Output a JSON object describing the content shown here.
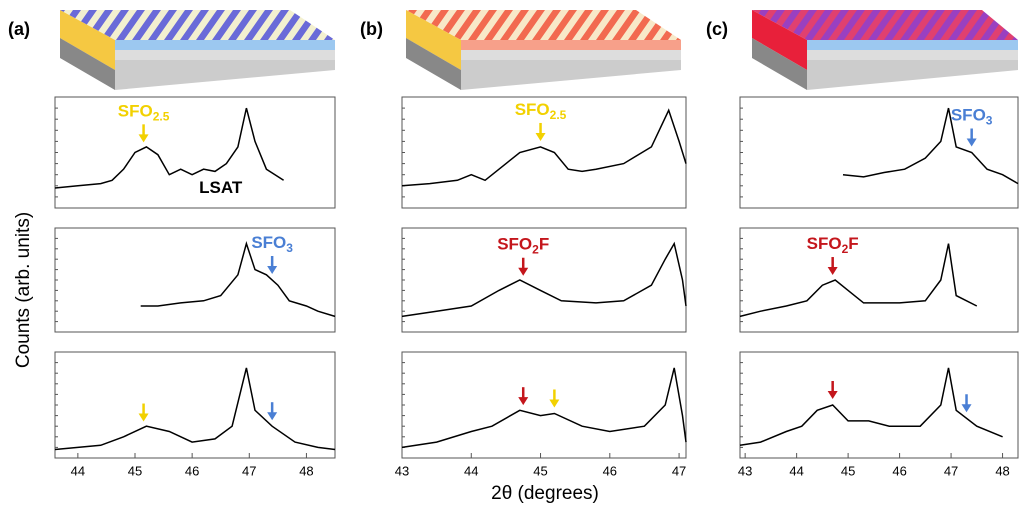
{
  "figure": {
    "ylabel": "Counts (arb. units)",
    "xlabel": "2θ (degrees)"
  },
  "chart_data": [
    {
      "type": "line",
      "panel": "(a)",
      "xlim": [
        43.6,
        48.5
      ],
      "ylim": [
        0,
        1
      ],
      "color": "#000000",
      "x": [
        43.6,
        44.0,
        44.4,
        44.6,
        44.8,
        45.0,
        45.2,
        45.4,
        45.6,
        45.8,
        46.0,
        46.2,
        46.4,
        46.6,
        46.8,
        46.95,
        47.1,
        47.3,
        47.6
      ],
      "values": [
        0.18,
        0.2,
        0.22,
        0.25,
        0.35,
        0.5,
        0.55,
        0.48,
        0.3,
        0.35,
        0.3,
        0.35,
        0.33,
        0.4,
        0.55,
        0.9,
        0.6,
        0.35,
        0.25
      ],
      "annotations": [
        {
          "x": 45.15,
          "label": "SFO",
          "sub": "2.5",
          "color": "#f2d100"
        },
        {
          "x": 46.5,
          "y": 0.17,
          "label": "LSAT",
          "color": "#000000"
        }
      ]
    },
    {
      "type": "line",
      "xlim": [
        43.6,
        48.5
      ],
      "ylim": [
        0,
        1
      ],
      "color": "#000000",
      "x": [
        45.1,
        45.4,
        45.8,
        46.2,
        46.5,
        46.8,
        46.95,
        47.1,
        47.3,
        47.5,
        47.7,
        48.0,
        48.2,
        48.5
      ],
      "values": [
        0.25,
        0.25,
        0.28,
        0.3,
        0.35,
        0.55,
        0.85,
        0.6,
        0.55,
        0.45,
        0.3,
        0.25,
        0.2,
        0.15
      ],
      "annotations": [
        {
          "x": 47.4,
          "label": "SFO",
          "sub": "3",
          "color": "#4a7fd4"
        }
      ]
    },
    {
      "type": "line",
      "xlim": [
        43.6,
        48.5
      ],
      "ylim": [
        0,
        1
      ],
      "color": "#000000",
      "xticks": [
        44,
        45,
        46,
        47,
        48
      ],
      "x": [
        43.6,
        44.0,
        44.4,
        44.8,
        45.2,
        45.6,
        46.0,
        46.4,
        46.7,
        46.95,
        47.1,
        47.4,
        47.8,
        48.2,
        48.5
      ],
      "values": [
        0.08,
        0.1,
        0.12,
        0.2,
        0.3,
        0.25,
        0.15,
        0.18,
        0.3,
        0.85,
        0.45,
        0.3,
        0.15,
        0.1,
        0.08
      ],
      "annotations": [
        {
          "x": 45.15,
          "color": "#f2d100"
        },
        {
          "x": 47.4,
          "color": "#4a7fd4"
        }
      ]
    },
    {
      "type": "line",
      "panel": "(b)",
      "xlim": [
        43,
        47.1
      ],
      "ylim": [
        0,
        1
      ],
      "color": "#000000",
      "x": [
        43,
        43.4,
        43.8,
        44.0,
        44.2,
        44.4,
        44.7,
        45.0,
        45.2,
        45.4,
        45.6,
        45.8,
        46.2,
        46.6,
        46.85,
        47.0,
        47.1
      ],
      "values": [
        0.2,
        0.22,
        0.25,
        0.3,
        0.25,
        0.35,
        0.5,
        0.55,
        0.5,
        0.35,
        0.33,
        0.35,
        0.4,
        0.55,
        0.88,
        0.6,
        0.4
      ],
      "annotations": [
        {
          "x": 45.0,
          "label": "SFO",
          "sub": "2.5",
          "color": "#f2d100"
        }
      ]
    },
    {
      "type": "line",
      "xlim": [
        43,
        47.1
      ],
      "ylim": [
        0,
        1
      ],
      "color": "#000000",
      "x": [
        43,
        43.5,
        44.0,
        44.4,
        44.7,
        45.0,
        45.3,
        45.8,
        46.2,
        46.6,
        46.8,
        46.93,
        47.05,
        47.1
      ],
      "values": [
        0.15,
        0.2,
        0.25,
        0.4,
        0.5,
        0.4,
        0.3,
        0.28,
        0.3,
        0.45,
        0.7,
        0.85,
        0.5,
        0.25
      ],
      "annotations": [
        {
          "x": 44.75,
          "label": "SFO",
          "sub": "2",
          "suffix": "F",
          "color": "#c4161c"
        }
      ]
    },
    {
      "type": "line",
      "xlim": [
        43,
        47.1
      ],
      "ylim": [
        0,
        1
      ],
      "color": "#000000",
      "xticks": [
        43,
        44,
        45,
        46,
        47
      ],
      "x": [
        43,
        43.5,
        44.0,
        44.3,
        44.7,
        45.0,
        45.2,
        45.6,
        46.0,
        46.5,
        46.8,
        46.93,
        47.05,
        47.1
      ],
      "values": [
        0.1,
        0.15,
        0.25,
        0.3,
        0.45,
        0.4,
        0.42,
        0.3,
        0.25,
        0.3,
        0.5,
        0.85,
        0.4,
        0.15
      ],
      "annotations": [
        {
          "x": 44.75,
          "color": "#c4161c"
        },
        {
          "x": 45.2,
          "color": "#f2d100"
        }
      ]
    },
    {
      "type": "line",
      "panel": "(c)",
      "xlim": [
        42.9,
        48.3
      ],
      "ylim": [
        0,
        1
      ],
      "color": "#000000",
      "x": [
        44.9,
        45.3,
        45.7,
        46.1,
        46.5,
        46.8,
        46.95,
        47.1,
        47.4,
        47.7,
        48.0,
        48.3
      ],
      "values": [
        0.3,
        0.28,
        0.32,
        0.35,
        0.45,
        0.6,
        0.9,
        0.55,
        0.5,
        0.35,
        0.3,
        0.22
      ],
      "annotations": [
        {
          "x": 47.4,
          "label": "SFO",
          "sub": "3",
          "color": "#4a7fd4"
        }
      ]
    },
    {
      "type": "line",
      "xlim": [
        42.9,
        48.3
      ],
      "ylim": [
        0,
        1
      ],
      "color": "#000000",
      "x": [
        42.9,
        43.3,
        43.8,
        44.2,
        44.5,
        44.75,
        45.0,
        45.3,
        46.0,
        46.5,
        46.8,
        46.95,
        47.1,
        47.5
      ],
      "values": [
        0.15,
        0.2,
        0.25,
        0.3,
        0.45,
        0.5,
        0.4,
        0.28,
        0.28,
        0.3,
        0.5,
        0.85,
        0.35,
        0.25
      ],
      "annotations": [
        {
          "x": 44.7,
          "label": "SFO",
          "sub": "2",
          "suffix": "F",
          "color": "#c4161c"
        }
      ]
    },
    {
      "type": "line",
      "xlim": [
        42.9,
        48.3
      ],
      "ylim": [
        0,
        1
      ],
      "color": "#000000",
      "xticks": [
        43,
        44,
        45,
        46,
        47,
        48
      ],
      "x": [
        42.9,
        43.3,
        43.8,
        44.1,
        44.4,
        44.7,
        45.0,
        45.4,
        45.8,
        46.4,
        46.8,
        46.95,
        47.1,
        47.5,
        48.0
      ],
      "values": [
        0.12,
        0.15,
        0.25,
        0.3,
        0.45,
        0.5,
        0.35,
        0.35,
        0.3,
        0.3,
        0.5,
        0.85,
        0.45,
        0.3,
        0.2
      ],
      "annotations": [
        {
          "x": 44.7,
          "color": "#c4161c"
        },
        {
          "x": 47.3,
          "color": "#4a7fd4"
        }
      ]
    }
  ]
}
